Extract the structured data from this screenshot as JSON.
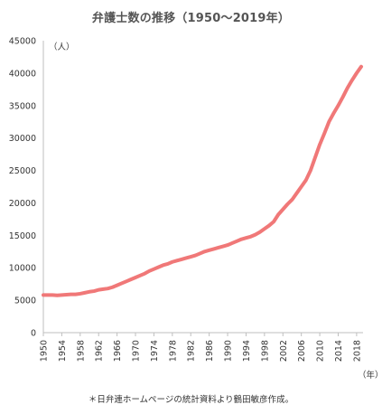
{
  "chart_data": {
    "type": "line",
    "title": "弁護士数の推移（1950〜2019年）",
    "ylabel": "（人）",
    "xlabel": "（年）",
    "note": "＊日弁連ホームページの統計資料より鶴田敏彦作成。",
    "ylim": [
      0,
      45000
    ],
    "yticks": [
      0,
      5000,
      10000,
      15000,
      20000,
      25000,
      30000,
      35000,
      40000,
      45000
    ],
    "xlim": [
      1950,
      2019
    ],
    "xticks": [
      1950,
      1954,
      1958,
      1962,
      1966,
      1970,
      1974,
      1978,
      1982,
      1986,
      1990,
      1994,
      1998,
      2002,
      2006,
      2010,
      2014,
      2018
    ],
    "grid": false,
    "series": [
      {
        "color": "#f07878",
        "x": [
          1950,
          1951,
          1952,
          1953,
          1954,
          1955,
          1956,
          1957,
          1958,
          1959,
          1960,
          1961,
          1962,
          1963,
          1964,
          1965,
          1966,
          1967,
          1968,
          1969,
          1970,
          1971,
          1972,
          1973,
          1974,
          1975,
          1976,
          1977,
          1978,
          1979,
          1980,
          1981,
          1982,
          1983,
          1984,
          1985,
          1986,
          1987,
          1988,
          1989,
          1990,
          1991,
          1992,
          1993,
          1994,
          1995,
          1996,
          1997,
          1998,
          1999,
          2000,
          2001,
          2002,
          2003,
          2004,
          2005,
          2006,
          2007,
          2008,
          2009,
          2010,
          2011,
          2012,
          2013,
          2014,
          2015,
          2016,
          2017,
          2018,
          2019
        ],
        "y": [
          5800,
          5800,
          5800,
          5750,
          5800,
          5850,
          5900,
          5900,
          6000,
          6150,
          6300,
          6400,
          6600,
          6700,
          6800,
          7000,
          7300,
          7600,
          7900,
          8200,
          8500,
          8800,
          9100,
          9500,
          9800,
          10100,
          10400,
          10600,
          10900,
          11100,
          11300,
          11500,
          11700,
          11900,
          12200,
          12500,
          12700,
          12900,
          13100,
          13300,
          13500,
          13800,
          14100,
          14400,
          14600,
          14800,
          15100,
          15500,
          16000,
          16500,
          17100,
          18200,
          19000,
          19800,
          20500,
          21500,
          22500,
          23500,
          25000,
          27000,
          29000,
          30700,
          32500,
          33800,
          35000,
          36300,
          37700,
          38900,
          40000,
          41000
        ]
      }
    ]
  }
}
